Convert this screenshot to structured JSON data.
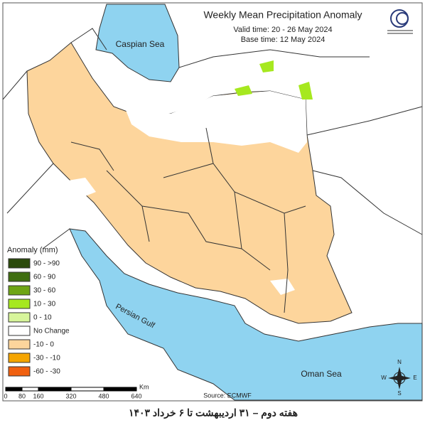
{
  "title": "Weekly Mean Precipitation Anomaly",
  "valid_time": "Valid time: 20 - 26 May 2024",
  "base_time": "Base time: 12 May 2024",
  "labels": {
    "caspian": "Caspian Sea",
    "gulf": "Persian Gulf",
    "oman": "Oman Sea"
  },
  "legend": {
    "title": "Anomaly (mm)",
    "items": [
      {
        "label": "90 - >90",
        "color": "#2b4a0b"
      },
      {
        "label": "60 - 90",
        "color": "#3f6e10"
      },
      {
        "label": "30 - 60",
        "color": "#6ea515"
      },
      {
        "label": "10 - 30",
        "color": "#a6e81f"
      },
      {
        "label": "0 - 10",
        "color": "#d7f59b"
      },
      {
        "label": "No Change",
        "color": "#ffffff"
      },
      {
        "label": "-10 - 0",
        "color": "#fdd59c"
      },
      {
        "label": "-30 - -10",
        "color": "#f5a500"
      },
      {
        "label": "-60 - -30",
        "color": "#f06010"
      }
    ]
  },
  "scale": {
    "ticks": [
      "0",
      "80",
      "160",
      "320",
      "480",
      "640"
    ],
    "unit": "Km"
  },
  "source": "Source: ECMWF",
  "compass": {
    "n": "N",
    "s": "S",
    "e": "E",
    "w": "W"
  },
  "caption": "هفته دوم – ۳۱ اردیبهشت تا ۶ خرداد ۱۴۰۳"
}
